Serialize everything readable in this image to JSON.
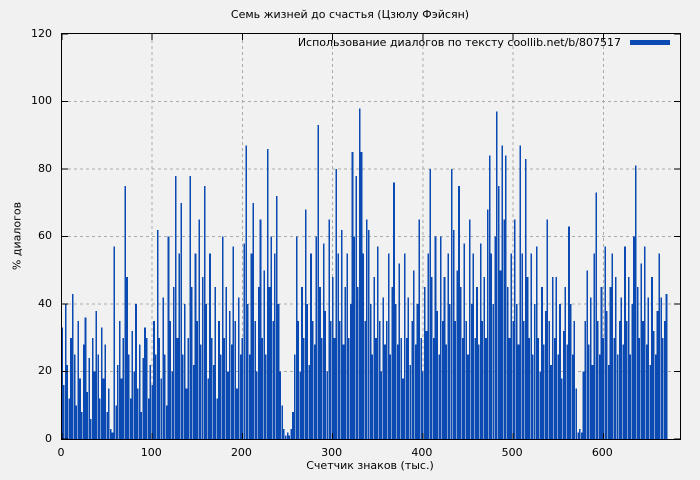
{
  "chart_data": {
    "type": "bar",
    "style": "impulses",
    "title": "Семь жизней до счастья (Цзюлу Фэйсян)",
    "xlabel": "Счетчик знаков (тыс.)",
    "ylabel": "% диалогов",
    "legend": {
      "label": "Использование диалогов по тексту coollib.net/b/807517",
      "position": "top-right"
    },
    "grid": true,
    "xlim": [
      0,
      685
    ],
    "ylim": [
      0,
      120
    ],
    "x_ticks": [
      0,
      100,
      200,
      300,
      400,
      500,
      600
    ],
    "y_ticks": [
      0,
      20,
      40,
      60,
      80,
      100,
      120
    ],
    "bar_color": "#0b4ab3",
    "background": "#f1f1f1",
    "grid_color": "#ababab",
    "x_start": 0,
    "x_step": 2,
    "values": [
      33,
      16,
      40,
      22,
      12,
      30,
      43,
      25,
      10,
      35,
      18,
      8,
      28,
      36,
      14,
      24,
      6,
      30,
      20,
      38,
      25,
      12,
      33,
      18,
      28,
      8,
      15,
      3,
      2,
      57,
      10,
      22,
      35,
      18,
      30,
      75,
      48,
      25,
      12,
      32,
      20,
      40,
      15,
      28,
      8,
      24,
      33,
      30,
      12,
      22,
      16,
      35,
      25,
      62,
      30,
      18,
      42,
      25,
      10,
      60,
      35,
      20,
      45,
      78,
      30,
      55,
      70,
      25,
      40,
      15,
      30,
      78,
      45,
      22,
      55,
      35,
      65,
      28,
      48,
      75,
      40,
      18,
      55,
      30,
      22,
      45,
      12,
      35,
      25,
      60,
      30,
      45,
      20,
      38,
      28,
      57,
      35,
      15,
      42,
      25,
      30,
      58,
      87,
      40,
      25,
      55,
      70,
      35,
      20,
      45,
      65,
      30,
      50,
      25,
      86,
      45,
      60,
      35,
      55,
      72,
      40,
      20,
      10,
      3,
      1,
      2,
      1,
      3,
      8,
      25,
      60,
      35,
      20,
      45,
      30,
      68,
      40,
      22,
      55,
      35,
      28,
      60,
      93,
      45,
      30,
      58,
      38,
      20,
      65,
      35,
      48,
      30,
      80,
      55,
      35,
      62,
      28,
      45,
      55,
      30,
      40,
      85,
      60,
      78,
      45,
      98,
      85,
      55,
      35,
      65,
      62,
      40,
      25,
      48,
      30,
      57,
      35,
      20,
      42,
      28,
      35,
      55,
      25,
      45,
      76,
      40,
      28,
      52,
      30,
      18,
      55,
      30,
      42,
      22,
      35,
      50,
      28,
      40,
      65,
      30,
      20,
      45,
      32,
      55,
      80,
      48,
      30,
      60,
      38,
      25,
      60,
      35,
      48,
      28,
      55,
      40,
      80,
      62,
      35,
      50,
      75,
      45,
      30,
      58,
      35,
      25,
      65,
      40,
      55,
      30,
      45,
      28,
      58,
      35,
      48,
      30,
      68,
      84,
      55,
      40,
      60,
      97,
      75,
      50,
      87,
      65,
      84,
      45,
      30,
      55,
      35,
      65,
      40,
      28,
      87,
      55,
      35,
      83,
      48,
      30,
      55,
      25,
      40,
      57,
      30,
      20,
      45,
      28,
      38,
      65,
      35,
      22,
      48,
      30,
      48,
      25,
      40,
      18,
      32,
      45,
      28,
      63,
      40,
      25,
      35,
      15,
      2,
      3,
      2,
      20,
      35,
      50,
      28,
      42,
      22,
      55,
      73,
      35,
      25,
      45,
      30,
      57,
      38,
      22,
      45,
      55,
      30,
      48,
      25,
      35,
      42,
      28,
      57,
      35,
      48,
      25,
      40,
      60,
      81,
      45,
      30,
      52,
      35,
      57,
      28,
      42,
      22,
      48,
      32,
      25,
      38,
      55,
      42,
      30,
      35,
      43,
      0,
      0,
      0,
      0,
      0,
      0,
      0
    ]
  }
}
